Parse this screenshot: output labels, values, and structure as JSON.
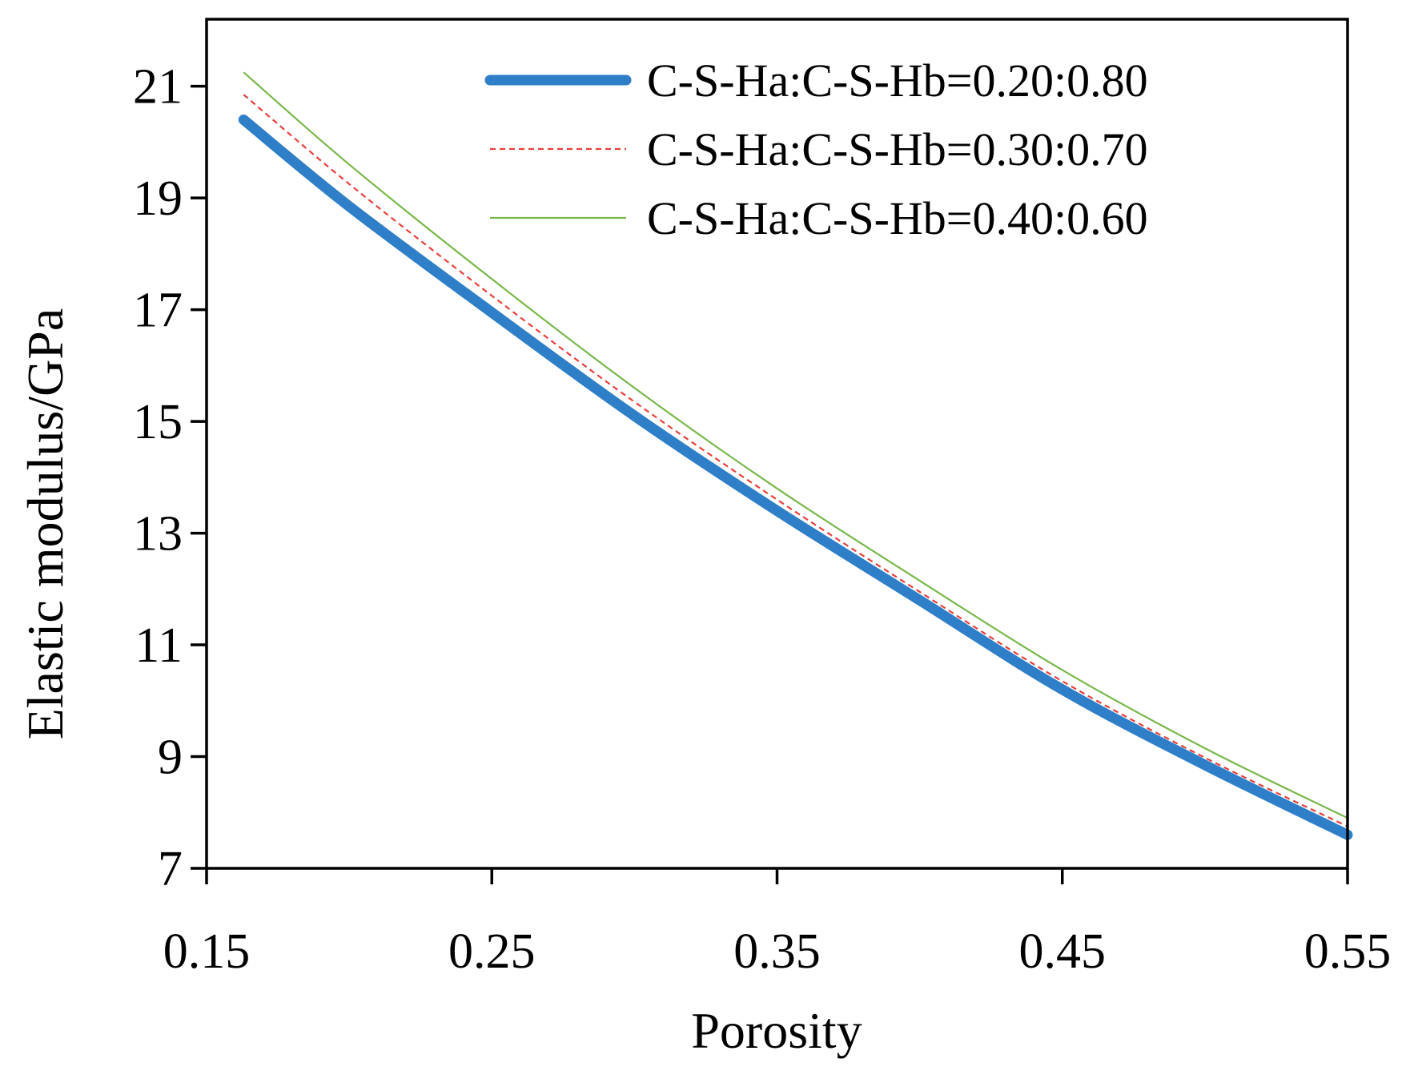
{
  "chart_data": {
    "type": "line",
    "title": "",
    "xlabel": "Porosity",
    "ylabel": "Elastic modulus/GPa",
    "xlim": [
      0.15,
      0.55
    ],
    "ylim": [
      7,
      22.2
    ],
    "xticks": [
      0.15,
      0.25,
      0.35,
      0.45,
      0.55
    ],
    "xtick_labels": [
      "0.15",
      "0.25",
      "0.35",
      "0.45",
      "0.55"
    ],
    "yticks": [
      7,
      9,
      11,
      13,
      15,
      17,
      19,
      21
    ],
    "ytick_labels": [
      "7",
      "9",
      "11",
      "13",
      "15",
      "17",
      "19",
      "21"
    ],
    "grid": false,
    "legend_position": "top-right",
    "x": [
      0.163,
      0.2,
      0.25,
      0.3,
      0.35,
      0.4,
      0.45,
      0.5,
      0.55
    ],
    "series": [
      {
        "name": "C-S-Ha:C-S-Hb=0.20:0.80",
        "color": "#2f7fc8",
        "style": "solid-thick",
        "values": [
          20.4,
          18.85,
          16.95,
          15.1,
          13.4,
          11.8,
          10.2,
          8.85,
          7.6
        ]
      },
      {
        "name": "C-S-Ha:C-S-Hb=0.30:0.70",
        "color": "#e8403a",
        "style": "dashed",
        "values": [
          20.85,
          19.25,
          17.25,
          15.35,
          13.6,
          11.95,
          10.35,
          8.98,
          7.75
        ]
      },
      {
        "name": "C-S-Ha:C-S-Hb=0.40:0.60",
        "color": "#78b84a",
        "style": "solid-thin",
        "values": [
          21.25,
          19.6,
          17.55,
          15.6,
          13.8,
          12.15,
          10.55,
          9.15,
          7.9
        ]
      }
    ]
  }
}
